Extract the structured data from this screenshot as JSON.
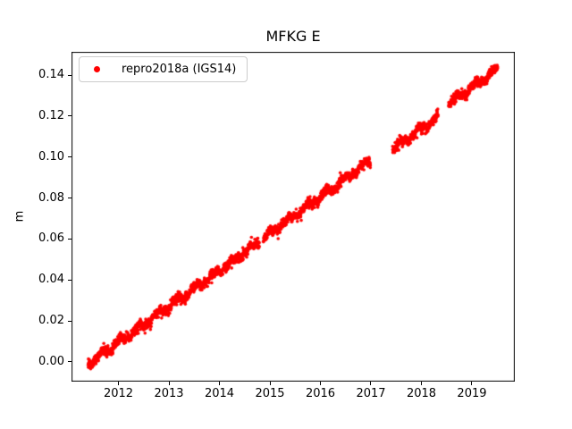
{
  "figure": {
    "background_color": "#ffffff",
    "frame_color": "#000000",
    "legend_border_color": "#cccccc"
  },
  "chart_data": {
    "type": "scatter",
    "title": "MFKG E",
    "xlabel": "",
    "ylabel": "m",
    "xlim": [
      2011.07,
      2019.85
    ],
    "ylim": [
      -0.0096,
      0.1514
    ],
    "x_ticks": [
      2012,
      2013,
      2014,
      2015,
      2016,
      2017,
      2018,
      2019
    ],
    "x_tick_labels": [
      "2012",
      "2013",
      "2014",
      "2015",
      "2016",
      "2017",
      "2018",
      "2019"
    ],
    "y_ticks": [
      0.0,
      0.02,
      0.04,
      0.06,
      0.08,
      0.1,
      0.12,
      0.14
    ],
    "y_tick_labels": [
      "0.00",
      "0.02",
      "0.04",
      "0.06",
      "0.08",
      "0.10",
      "0.12",
      "0.14"
    ],
    "grid": false,
    "legend": {
      "position": "upper left",
      "entries": [
        {
          "label": "repro2018a (IGS14)",
          "marker": "dot",
          "color": "#ff0000"
        }
      ]
    },
    "series": [
      {
        "name": "repro2018a (IGS14)",
        "color": "#ff0000",
        "marker": "point",
        "marker_size_px": 3.6,
        "points_per_year": 365,
        "noise_sigma_m": 0.0011,
        "outlier_probability": 0.012,
        "outlier_amplitude_m": 0.008,
        "wiggles": [
          {
            "amp": 0.0013,
            "period": 0.37,
            "phase": 2.0
          },
          {
            "amp": 0.0007,
            "period": 0.128,
            "phase": 0.7
          }
        ],
        "segments": [
          {
            "t_start": 2011.4,
            "t_end": 2014.79,
            "v_start": -0.001,
            "v_end": 0.0585
          },
          {
            "t_start": 2014.87,
            "t_end": 2016.99,
            "v_start": 0.0605,
            "v_end": 0.0985
          },
          {
            "t_start": 2017.43,
            "t_end": 2018.33,
            "v_start": 0.104,
            "v_end": 0.1195
          },
          {
            "t_start": 2018.54,
            "t_end": 2019.51,
            "v_start": 0.1262,
            "v_end": 0.1428
          }
        ],
        "data_gaps": [
          [
            2014.79,
            2014.87
          ],
          [
            2016.99,
            2017.43
          ],
          [
            2018.33,
            2018.54
          ]
        ],
        "trend_points": [
          [
            2011.4,
            -0.001
          ],
          [
            2011.65,
            0.0034
          ],
          [
            2011.9,
            0.0078
          ],
          [
            2012.15,
            0.0122
          ],
          [
            2012.4,
            0.0166
          ],
          [
            2012.65,
            0.0209
          ],
          [
            2012.9,
            0.0253
          ],
          [
            2013.15,
            0.0297
          ],
          [
            2013.4,
            0.0341
          ],
          [
            2013.65,
            0.0385
          ],
          [
            2013.9,
            0.0429
          ],
          [
            2014.15,
            0.0473
          ],
          [
            2014.4,
            0.0517
          ],
          [
            2014.65,
            0.056
          ],
          [
            2014.79,
            0.0585
          ],
          [
            2014.87,
            0.0605
          ],
          [
            2015.12,
            0.065
          ],
          [
            2015.37,
            0.0695
          ],
          [
            2015.62,
            0.0739
          ],
          [
            2015.87,
            0.0784
          ],
          [
            2016.12,
            0.0829
          ],
          [
            2016.37,
            0.0874
          ],
          [
            2016.62,
            0.0919
          ],
          [
            2016.87,
            0.0963
          ],
          [
            2016.99,
            0.0985
          ],
          [
            2017.43,
            0.104
          ],
          [
            2017.68,
            0.1083
          ],
          [
            2017.93,
            0.1126
          ],
          [
            2018.18,
            0.1169
          ],
          [
            2018.33,
            0.1195
          ],
          [
            2018.54,
            0.1262
          ],
          [
            2018.79,
            0.1305
          ],
          [
            2019.04,
            0.1348
          ],
          [
            2019.29,
            0.139
          ],
          [
            2019.51,
            0.1428
          ]
        ]
      }
    ]
  }
}
